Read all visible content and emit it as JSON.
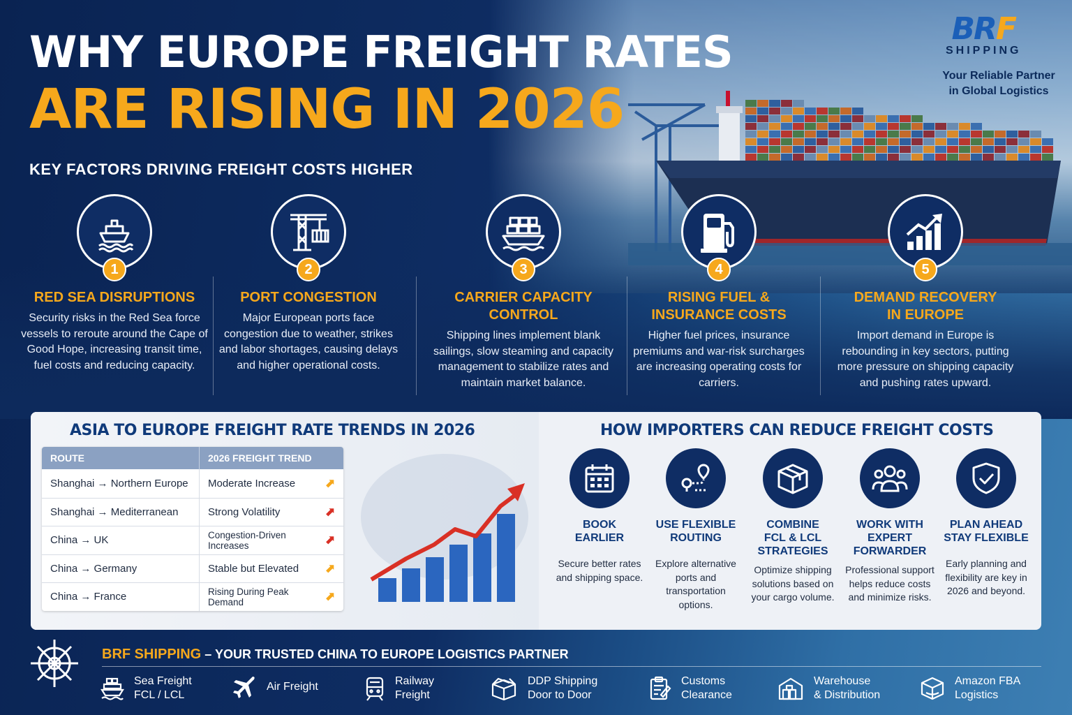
{
  "header": {
    "title_line1": "WHY EUROPE FREIGHT RATES",
    "title_line2": "ARE RISING IN 2026",
    "subtitle": "KEY FACTORS DRIVING FREIGHT COSTS HIGHER"
  },
  "brand": {
    "logo_mark_a": "BR",
    "logo_mark_b": "F",
    "logo_sub": "SHIPPING",
    "tagline_line1": "Your Reliable Partner",
    "tagline_line2": "in Global Logistics"
  },
  "factors": [
    {
      "num": "1",
      "icon": "ship-icon",
      "title_line1": "RED SEA DISRUPTIONS",
      "title_line2": "",
      "description": "Security risks in the Red Sea force vessels to reroute around the Cape of Good Hope, increasing transit time, fuel costs and reducing capacity."
    },
    {
      "num": "2",
      "icon": "port-crane-icon",
      "title_line1": "PORT CONGESTION",
      "title_line2": "",
      "description": "Major European ports face congestion due to weather, strikes and labor shortages, causing delays and higher operational costs."
    },
    {
      "num": "3",
      "icon": "container-ship-icon",
      "title_line1": "CARRIER CAPACITY",
      "title_line2": "CONTROL",
      "description": "Shipping lines implement blank sailings, slow steaming and capacity management to stabilize rates and maintain market balance."
    },
    {
      "num": "4",
      "icon": "fuel-pump-icon",
      "title_line1": "RISING FUEL &",
      "title_line2": "INSURANCE COSTS",
      "description": "Higher fuel prices, insurance premiums and war-risk surcharges are increasing operating costs for carriers."
    },
    {
      "num": "5",
      "icon": "growth-chart-icon",
      "title_line1": "DEMAND RECOVERY",
      "title_line2": "IN EUROPE",
      "description": "Import demand in Europe is rebounding in key sectors, putting more pressure on shipping capacity and pushing rates upward."
    }
  ],
  "trends": {
    "title": "ASIA TO EUROPE FREIGHT RATE TRENDS IN 2026",
    "col_route": "ROUTE",
    "col_trend": "2026 FREIGHT TREND",
    "rows": [
      {
        "route": "Shanghai → Northern Europe",
        "trend": "Moderate Increase",
        "arrow_color": "#f6a81c"
      },
      {
        "route": "Shanghai → Mediterranean",
        "trend": "Strong Volatility",
        "arrow_color": "#d93025"
      },
      {
        "route": "China → UK",
        "trend": "Congestion-Driven Increases",
        "arrow_color": "#d93025"
      },
      {
        "route": "China → Germany",
        "trend": "Stable but Elevated",
        "arrow_color": "#f6a81c"
      },
      {
        "route": "China → France",
        "trend": "Rising During Peak Demand",
        "arrow_color": "#f6a81c"
      }
    ],
    "arrow_glyph": "⬈"
  },
  "tips": {
    "title": "HOW IMPORTERS CAN REDUCE FREIGHT COSTS",
    "items": [
      {
        "icon": "calendar-icon",
        "title_line1": "BOOK",
        "title_line2": "EARLIER",
        "title_line3": "",
        "description": "Secure better rates and shipping space."
      },
      {
        "icon": "route-pin-icon",
        "title_line1": "USE FLEXIBLE",
        "title_line2": "ROUTING",
        "title_line3": "",
        "description": "Explore alternative ports and transportation options."
      },
      {
        "icon": "box-icon",
        "title_line1": "COMBINE",
        "title_line2": "FCL & LCL",
        "title_line3": "STRATEGIES",
        "description": "Optimize shipping solutions based on your cargo volume."
      },
      {
        "icon": "team-icon",
        "title_line1": "WORK WITH",
        "title_line2": "EXPERT",
        "title_line3": "FORWARDER",
        "description": "Professional support helps reduce costs and minimize risks."
      },
      {
        "icon": "shield-check-icon",
        "title_line1": "PLAN AHEAD",
        "title_line2": "STAY FLEXIBLE",
        "title_line3": "",
        "description": "Early planning and flexibility are key in 2026 and beyond."
      }
    ]
  },
  "footer": {
    "brand": "BRF SHIPPING",
    "slogan": " – YOUR TRUSTED CHINA TO EUROPE LOGISTICS PARTNER",
    "services": [
      {
        "icon": "sea-freight-icon",
        "line1": "Sea Freight",
        "line2": "FCL / LCL"
      },
      {
        "icon": "airplane-icon",
        "line1": "Air Freight",
        "line2": ""
      },
      {
        "icon": "train-icon",
        "line1": "Railway",
        "line2": "Freight"
      },
      {
        "icon": "package-icon",
        "line1": "DDP Shipping",
        "line2": "Door to Door"
      },
      {
        "icon": "clipboard-icon",
        "line1": "Customs",
        "line2": "Clearance"
      },
      {
        "icon": "warehouse-icon",
        "line1": "Warehouse",
        "line2": "& Distribution"
      },
      {
        "icon": "amazon-box-icon",
        "line1": "Amazon FBA",
        "line2": "Logistics"
      }
    ]
  },
  "colors": {
    "navy": "#0d2a5c",
    "accent_orange": "#f6a81c",
    "accent_red": "#d93025",
    "panel_title_blue": "#103a7a"
  }
}
